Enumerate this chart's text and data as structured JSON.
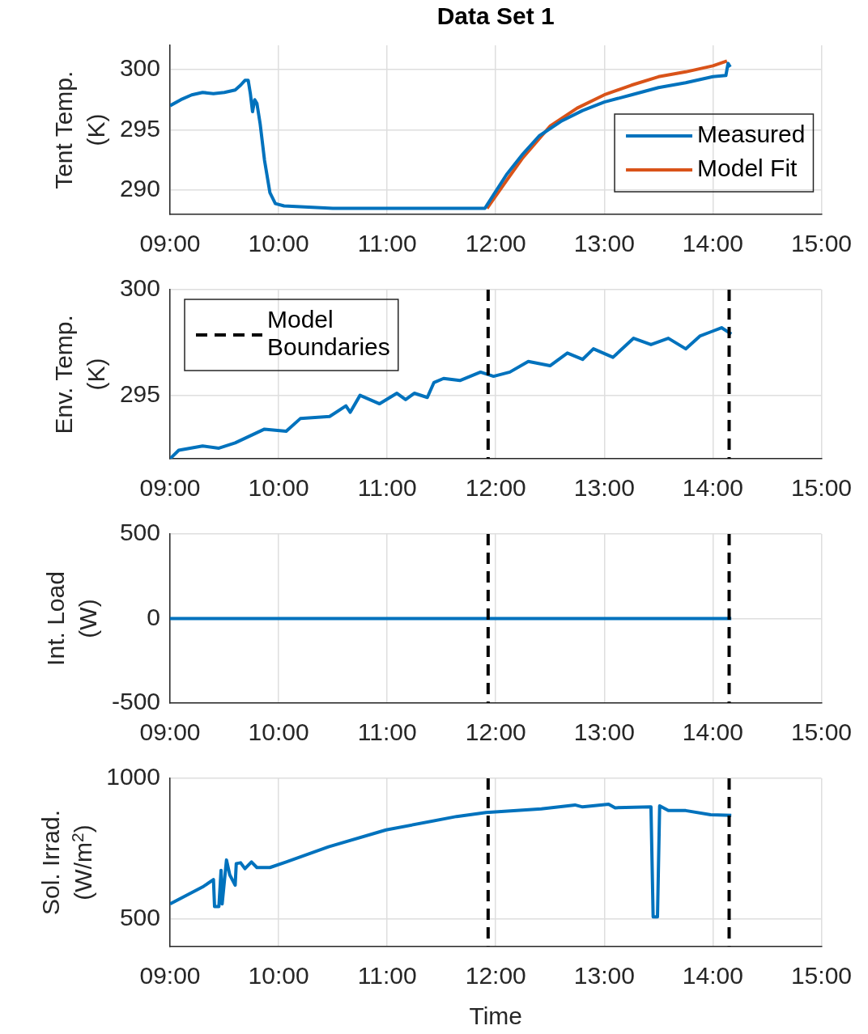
{
  "chart_data": [
    {
      "type": "line",
      "title": "Data Set 1",
      "ylabel": "Tent Temp. (K)",
      "xlim": [
        9,
        15
      ],
      "xticks": [
        {
          "value": 9,
          "label": "09:00"
        },
        {
          "value": 10,
          "label": "10:00"
        },
        {
          "value": 11,
          "label": "11:00"
        },
        {
          "value": 12,
          "label": "12:00"
        },
        {
          "value": 13,
          "label": "13:00"
        },
        {
          "value": 14,
          "label": "14:00"
        },
        {
          "value": 15,
          "label": "15:00"
        }
      ],
      "ylim": [
        288,
        302
      ],
      "yticks": [
        290,
        295,
        300
      ],
      "grid": true,
      "marker": "none",
      "legend": "bottom right",
      "series": [
        {
          "name": "Measured",
          "color": "#0072bd",
          "x": [
            9.0,
            9.1,
            9.2,
            9.3,
            9.4,
            9.5,
            9.6,
            9.65,
            9.69,
            9.72,
            9.74,
            9.76,
            9.78,
            9.8,
            9.83,
            9.87,
            9.92,
            9.97,
            10.05,
            10.5,
            11.0,
            11.5,
            11.9,
            12.0,
            12.1,
            12.25,
            12.4,
            12.6,
            12.8,
            13.0,
            13.25,
            13.5,
            13.75,
            14.0,
            14.12,
            14.14,
            14.16
          ],
          "values": [
            297.0,
            297.5,
            297.9,
            298.1,
            298.0,
            298.1,
            298.3,
            298.7,
            299.1,
            299.1,
            298.0,
            296.5,
            297.5,
            297.2,
            295.5,
            292.5,
            289.8,
            288.9,
            288.7,
            288.5,
            288.5,
            288.5,
            288.5,
            289.9,
            291.3,
            293.0,
            294.5,
            295.7,
            296.6,
            297.3,
            297.9,
            298.5,
            298.9,
            299.4,
            299.5,
            300.5,
            300.2
          ]
        },
        {
          "name": "Model Fit",
          "color": "#d95319",
          "x": [
            11.92,
            12.1,
            12.25,
            12.5,
            12.75,
            13.0,
            13.25,
            13.5,
            13.75,
            14.0,
            14.13
          ],
          "values": [
            288.5,
            290.8,
            292.7,
            295.3,
            296.8,
            297.9,
            298.7,
            299.4,
            299.8,
            300.3,
            300.7
          ]
        }
      ]
    },
    {
      "type": "line",
      "ylabel": "Env. Temp. (K)",
      "xlim": [
        9,
        15
      ],
      "xticks": [
        {
          "value": 9,
          "label": "09:00"
        },
        {
          "value": 10,
          "label": "10:00"
        },
        {
          "value": 11,
          "label": "11:00"
        },
        {
          "value": 12,
          "label": "12:00"
        },
        {
          "value": 13,
          "label": "13:00"
        },
        {
          "value": 14,
          "label": "14:00"
        },
        {
          "value": 15,
          "label": "15:00"
        }
      ],
      "ylim": [
        292,
        300
      ],
      "yticks": [
        295,
        300
      ],
      "grid": true,
      "marker": "none",
      "legend": "top left",
      "ref_lines": [
        {
          "axis": "x",
          "value": 11.93,
          "label": "Model Boundaries",
          "color": "#000000",
          "line_style": "dashed"
        },
        {
          "axis": "x",
          "value": 14.15,
          "color": "#000000",
          "line_style": "dashed"
        }
      ],
      "series": [
        {
          "color": "#0072bd",
          "x": [
            9.0,
            9.08,
            9.3,
            9.45,
            9.6,
            9.87,
            10.07,
            10.2,
            10.47,
            10.62,
            10.66,
            10.75,
            10.93,
            11.09,
            11.17,
            11.25,
            11.37,
            11.43,
            11.52,
            11.67,
            11.86,
            11.98,
            12.13,
            12.3,
            12.5,
            12.66,
            12.8,
            12.9,
            13.08,
            13.27,
            13.43,
            13.59,
            13.75,
            13.88,
            13.98,
            14.08,
            14.17
          ],
          "values": [
            292.0,
            292.4,
            292.6,
            292.5,
            292.75,
            293.4,
            293.3,
            293.9,
            294.0,
            294.5,
            294.2,
            295.0,
            294.6,
            295.1,
            294.8,
            295.1,
            294.9,
            295.6,
            295.8,
            295.7,
            296.1,
            295.9,
            296.1,
            296.6,
            296.4,
            297.0,
            296.7,
            297.2,
            296.8,
            297.7,
            297.4,
            297.7,
            297.2,
            297.8,
            298.0,
            298.2,
            297.9
          ]
        }
      ]
    },
    {
      "type": "line",
      "ylabel": "Int. Load (W)",
      "xlim": [
        9,
        15
      ],
      "xticks": [
        {
          "value": 9,
          "label": "09:00"
        },
        {
          "value": 10,
          "label": "10:00"
        },
        {
          "value": 11,
          "label": "11:00"
        },
        {
          "value": 12,
          "label": "12:00"
        },
        {
          "value": 13,
          "label": "13:00"
        },
        {
          "value": 14,
          "label": "14:00"
        },
        {
          "value": 15,
          "label": "15:00"
        }
      ],
      "ylim": [
        -500,
        500
      ],
      "yticks": [
        -500,
        0,
        500
      ],
      "grid": true,
      "marker": "none",
      "ref_lines": [
        {
          "axis": "x",
          "value": 11.93,
          "color": "#000000",
          "line_style": "dashed"
        },
        {
          "axis": "x",
          "value": 14.15,
          "color": "#000000",
          "line_style": "dashed"
        }
      ],
      "series": [
        {
          "color": "#0072bd",
          "x": [
            9.0,
            14.17
          ],
          "values": [
            0,
            0
          ]
        }
      ]
    },
    {
      "type": "line",
      "ylabel": "Sol. Irrad. (W/m$^{2}$)",
      "xlabel": "Time",
      "xlim": [
        9,
        15
      ],
      "xticks": [
        {
          "value": 9,
          "label": "09:00"
        },
        {
          "value": 10,
          "label": "10:00"
        },
        {
          "value": 11,
          "label": "11:00"
        },
        {
          "value": 12,
          "label": "12:00"
        },
        {
          "value": 13,
          "label": "13:00"
        },
        {
          "value": 14,
          "label": "14:00"
        },
        {
          "value": 15,
          "label": "15:00"
        }
      ],
      "ylim": [
        400,
        1000
      ],
      "yticks": [
        500,
        1000
      ],
      "grid": true,
      "marker": "none",
      "ref_lines": [
        {
          "axis": "x",
          "value": 11.93,
          "color": "#000000",
          "line_style": "dashed"
        },
        {
          "axis": "x",
          "value": 14.15,
          "color": "#000000",
          "line_style": "dashed"
        }
      ],
      "series": [
        {
          "color": "#0072bd",
          "x": [
            9.0,
            9.31,
            9.4,
            9.41,
            9.45,
            9.47,
            9.48,
            9.52,
            9.55,
            9.6,
            9.61,
            9.65,
            9.69,
            9.75,
            9.8,
            9.92,
            10.07,
            10.46,
            10.99,
            11.64,
            11.91,
            12.42,
            12.73,
            12.8,
            13.04,
            13.1,
            13.43,
            13.45,
            13.49,
            13.51,
            13.59,
            13.75,
            13.98,
            14.17
          ],
          "values": [
            552,
            615,
            639,
            543,
            543,
            672,
            552,
            709,
            656,
            619,
            696,
            699,
            678,
            702,
            682,
            682,
            702,
            756,
            816,
            864,
            878,
            891,
            905,
            898,
            908,
            895,
            898,
            506,
            506,
            902,
            885,
            885,
            870,
            868
          ]
        }
      ]
    }
  ]
}
